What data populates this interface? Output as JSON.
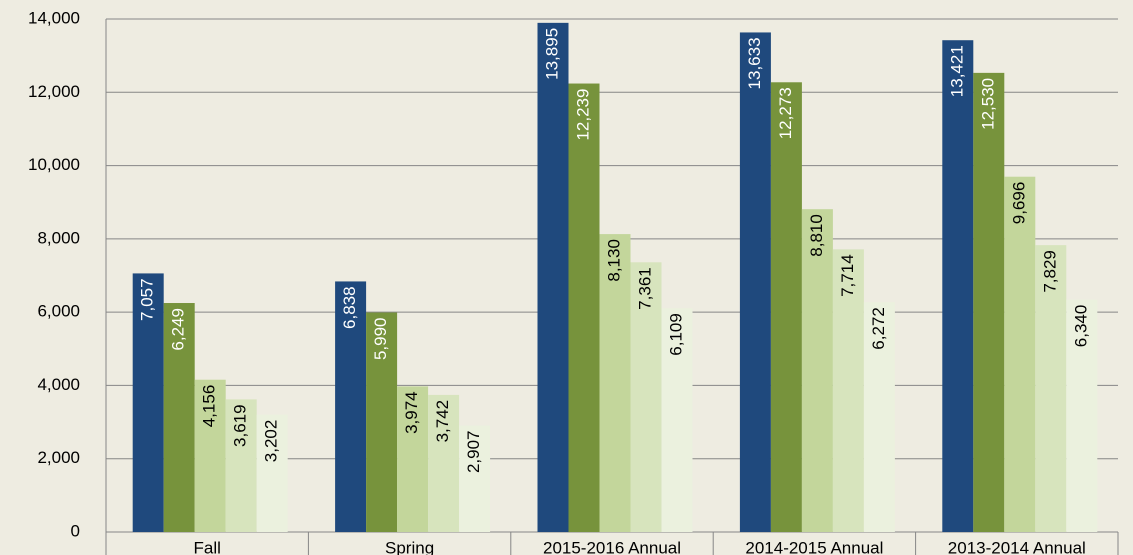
{
  "chart_data": {
    "type": "bar",
    "categories": [
      "Fall",
      "Spring",
      "2015-2016 Annual",
      "2014-2015 Annual",
      "2013-2014 Annual"
    ],
    "series": [
      {
        "color": "#1f497d",
        "values": [
          7057,
          6838,
          13895,
          13633,
          13421
        ],
        "value_labels": [
          "7,057",
          "6,838",
          "13,895",
          "13,633",
          "13,421"
        ]
      },
      {
        "color": "#77933c",
        "values": [
          6249,
          5990,
          12239,
          12273,
          12530
        ],
        "value_labels": [
          "6,249",
          "5,990",
          "12,239",
          "12,273",
          "12,530"
        ]
      },
      {
        "color": "#c3d69b",
        "values": [
          4156,
          3974,
          8130,
          8810,
          9696
        ],
        "value_labels": [
          "4,156",
          "3,974",
          "8,130",
          "8,810",
          "9,696"
        ]
      },
      {
        "color": "#d7e4bd",
        "values": [
          3619,
          3742,
          7361,
          7714,
          7829
        ],
        "value_labels": [
          "3,619",
          "3,742",
          "7,361",
          "7,714",
          "7,829"
        ]
      },
      {
        "color": "#ebf1de",
        "values": [
          3202,
          2907,
          6109,
          6272,
          6340
        ],
        "value_labels": [
          "3,202",
          "2,907",
          "6,109",
          "6,272",
          "6,340"
        ]
      }
    ],
    "ylim": [
      0,
      14000
    ],
    "yticks": [
      0,
      {
        "value": 2000,
        "label": "2,000"
      },
      {
        "value": 4000,
        "label": "4,000"
      },
      {
        "value": 6000,
        "label": "6,000"
      },
      {
        "value": 8000,
        "label": "8,000"
      },
      {
        "value": 10000,
        "label": "10,000"
      },
      {
        "value": 12000,
        "label": "12,000"
      },
      {
        "value": 14000,
        "label": "14,000"
      }
    ],
    "grid": true
  }
}
